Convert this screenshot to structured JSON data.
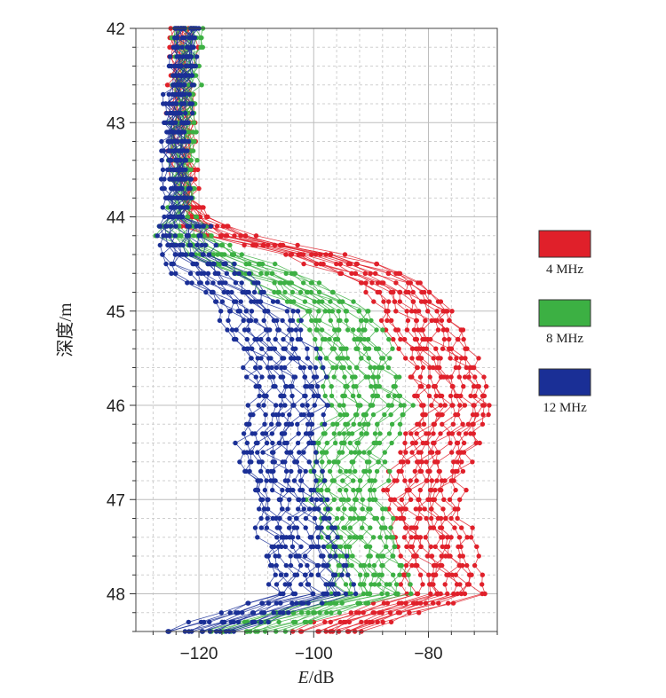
{
  "chart_data": {
    "type": "line",
    "xlabel": "E/dB",
    "ylabel": "深度/m",
    "xlim": [
      -131,
      -68
    ],
    "ylim": [
      42,
      48.4
    ],
    "y_inverted": true,
    "xticks": [
      -120,
      -100,
      -80
    ],
    "xtick_labels": [
      "−120",
      "−100",
      "−80"
    ],
    "yticks": [
      42,
      43,
      44,
      45,
      46,
      47,
      48
    ],
    "ytick_labels": [
      "42",
      "43",
      "44",
      "45",
      "46",
      "47",
      "48"
    ],
    "grid": true,
    "legend_position": "right",
    "series": [
      {
        "name": "4 MHz",
        "color": "#e0202a",
        "depth": [
          42.0,
          42.5,
          43.0,
          43.5,
          44.0,
          44.2,
          44.4,
          44.7,
          45.0,
          45.5,
          46.0,
          46.5,
          47.0,
          47.5,
          48.0,
          48.2,
          48.4
        ],
        "E": [
          -123,
          -123,
          -123,
          -123,
          -121,
          -115,
          -100,
          -86,
          -82,
          -78,
          -75,
          -79,
          -81,
          -79,
          -77,
          -88,
          -97
        ]
      },
      {
        "name": "8 MHz",
        "color": "#3cb043",
        "depth": [
          42.0,
          42.5,
          43.0,
          43.5,
          44.0,
          44.2,
          44.4,
          44.7,
          45.0,
          45.5,
          46.0,
          46.5,
          47.0,
          47.5,
          48.0,
          48.2,
          48.4
        ],
        "E": [
          -122,
          -122,
          -123,
          -123,
          -123,
          -122,
          -117,
          -105,
          -96,
          -93,
          -90,
          -94,
          -94,
          -92,
          -90,
          -102,
          -112
        ]
      },
      {
        "name": "12 MHz",
        "color": "#1a2f96",
        "depth": [
          42.0,
          42.5,
          43.0,
          43.5,
          44.0,
          44.2,
          44.4,
          44.7,
          45.0,
          45.5,
          46.0,
          46.5,
          47.0,
          47.5,
          48.0,
          48.2,
          48.4
        ],
        "E": [
          -122,
          -123,
          -124,
          -124,
          -124,
          -123,
          -122,
          -116,
          -110,
          -106,
          -104,
          -107,
          -104,
          -102,
          -100,
          -110,
          -120
        ]
      }
    ]
  }
}
